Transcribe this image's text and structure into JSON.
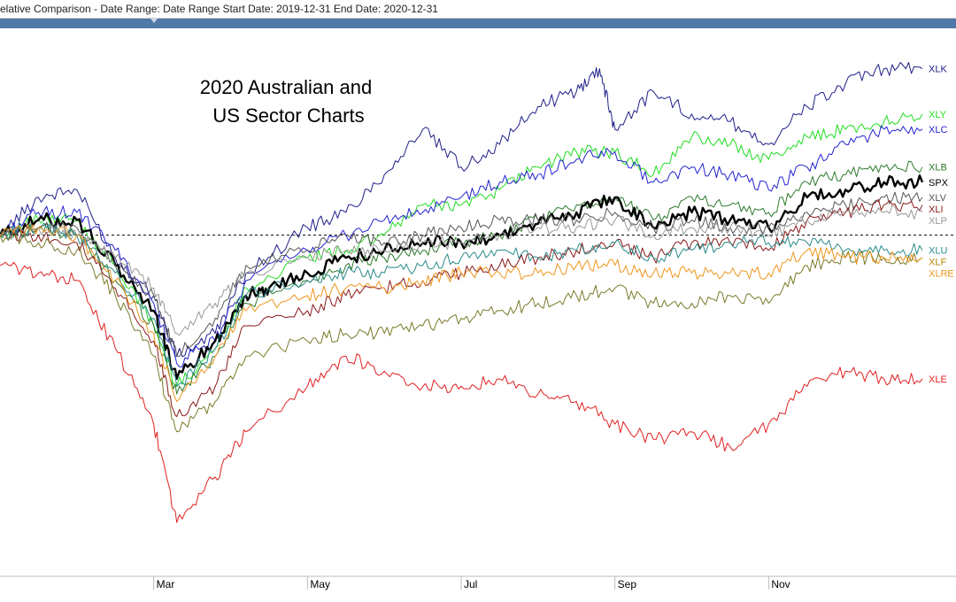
{
  "window": {
    "title": "elative Comparison - Date Range: Date Range  Start Date: 2019-12-31  End Date: 2020-12-31"
  },
  "chart_data": {
    "type": "line",
    "title": "2020 Australian and US Sector Charts",
    "title_lines": [
      "2020 Australian and",
      "US Sector Charts"
    ],
    "x_ticks": [
      "Mar",
      "May",
      "Jul",
      "Sep",
      "Nov"
    ],
    "x_tick_pos": [
      2,
      4,
      6,
      8,
      10
    ],
    "xlim": [
      0.0,
      12.0
    ],
    "ylim": [
      -45,
      25
    ],
    "ylabel": "",
    "xlabel": "",
    "baseline": 0,
    "grid": false,
    "legend": "labels at line ends (right)",
    "series": [
      {
        "name": "XLK",
        "color": "#1f1f8a",
        "label_color": "#1f1f8a",
        "width": 1,
        "points": [
          [
            0,
            0
          ],
          [
            0.5,
            5
          ],
          [
            1.0,
            6
          ],
          [
            1.5,
            -3
          ],
          [
            2.0,
            -8
          ],
          [
            2.3,
            -16
          ],
          [
            2.8,
            -13
          ],
          [
            3.2,
            -5
          ],
          [
            4.0,
            1
          ],
          [
            4.5,
            3
          ],
          [
            5.0,
            8
          ],
          [
            5.5,
            14
          ],
          [
            6.0,
            9
          ],
          [
            6.5,
            12
          ],
          [
            7.0,
            17
          ],
          [
            7.5,
            19
          ],
          [
            7.8,
            22
          ],
          [
            8.0,
            14
          ],
          [
            8.5,
            19
          ],
          [
            9.0,
            16
          ],
          [
            9.5,
            15
          ],
          [
            10.0,
            12
          ],
          [
            10.5,
            17
          ],
          [
            11.0,
            20
          ],
          [
            11.5,
            22
          ],
          [
            12.0,
            22
          ]
        ]
      },
      {
        "name": "XLY",
        "color": "#22dd22",
        "label_color": "#22dd22",
        "width": 1,
        "points": [
          [
            0,
            0
          ],
          [
            0.5,
            2
          ],
          [
            1.0,
            2
          ],
          [
            1.5,
            -4
          ],
          [
            2.0,
            -12
          ],
          [
            2.3,
            -20
          ],
          [
            2.8,
            -15
          ],
          [
            3.2,
            -7
          ],
          [
            4.0,
            -3
          ],
          [
            4.5,
            -2
          ],
          [
            5.0,
            0
          ],
          [
            5.5,
            4
          ],
          [
            6.0,
            4
          ],
          [
            6.5,
            6
          ],
          [
            7.0,
            9
          ],
          [
            7.5,
            11
          ],
          [
            8.0,
            11
          ],
          [
            8.5,
            8
          ],
          [
            9.0,
            13
          ],
          [
            9.5,
            12
          ],
          [
            10.0,
            10
          ],
          [
            10.5,
            13
          ],
          [
            11.0,
            14
          ],
          [
            11.5,
            15
          ],
          [
            12.0,
            16
          ]
        ]
      },
      {
        "name": "XLC",
        "color": "#2323d0",
        "label_color": "#2323d0",
        "width": 1,
        "points": [
          [
            0,
            0
          ],
          [
            0.5,
            3
          ],
          [
            1.0,
            3
          ],
          [
            1.5,
            -2
          ],
          [
            2.0,
            -9
          ],
          [
            2.3,
            -17
          ],
          [
            2.8,
            -14
          ],
          [
            3.2,
            -6
          ],
          [
            4.0,
            -2
          ],
          [
            4.5,
            0
          ],
          [
            5.0,
            2
          ],
          [
            5.5,
            3
          ],
          [
            6.0,
            5
          ],
          [
            6.5,
            7
          ],
          [
            7.0,
            8
          ],
          [
            7.5,
            10
          ],
          [
            8.0,
            11
          ],
          [
            8.5,
            7
          ],
          [
            9.0,
            9
          ],
          [
            9.5,
            8
          ],
          [
            10.0,
            6
          ],
          [
            10.5,
            9
          ],
          [
            11.0,
            12
          ],
          [
            11.5,
            14
          ],
          [
            12.0,
            14
          ]
        ]
      },
      {
        "name": "XLB",
        "color": "#2d7a2d",
        "label_color": "#2d7a2d",
        "width": 1,
        "points": [
          [
            0,
            0
          ],
          [
            0.5,
            1
          ],
          [
            1.0,
            0
          ],
          [
            1.5,
            -6
          ],
          [
            2.0,
            -12
          ],
          [
            2.3,
            -21
          ],
          [
            2.8,
            -16
          ],
          [
            3.2,
            -9
          ],
          [
            4.0,
            -6
          ],
          [
            4.5,
            -4
          ],
          [
            5.0,
            -3
          ],
          [
            5.5,
            -2
          ],
          [
            6.0,
            -1
          ],
          [
            6.5,
            0
          ],
          [
            7.0,
            2
          ],
          [
            7.5,
            4
          ],
          [
            8.0,
            5
          ],
          [
            8.5,
            2
          ],
          [
            9.0,
            5
          ],
          [
            9.5,
            4
          ],
          [
            10.0,
            3
          ],
          [
            10.5,
            7
          ],
          [
            11.0,
            8
          ],
          [
            11.5,
            9
          ],
          [
            12.0,
            9
          ]
        ]
      },
      {
        "name": "SPX",
        "color": "#000000",
        "label_color": "#000000",
        "width": 2.4,
        "points": [
          [
            0,
            0
          ],
          [
            0.5,
            2
          ],
          [
            1.0,
            2
          ],
          [
            1.5,
            -4
          ],
          [
            2.0,
            -10
          ],
          [
            2.3,
            -19
          ],
          [
            2.8,
            -14
          ],
          [
            3.2,
            -8
          ],
          [
            3.5,
            -7
          ],
          [
            4.0,
            -5
          ],
          [
            4.5,
            -3
          ],
          [
            5.0,
            -2
          ],
          [
            5.5,
            -1
          ],
          [
            6.0,
            -1
          ],
          [
            6.5,
            0
          ],
          [
            7.0,
            1.5
          ],
          [
            7.5,
            3
          ],
          [
            8.0,
            5
          ],
          [
            8.5,
            1
          ],
          [
            9.0,
            3
          ],
          [
            9.5,
            2
          ],
          [
            10.0,
            1
          ],
          [
            10.5,
            5
          ],
          [
            11.0,
            6
          ],
          [
            11.5,
            7
          ],
          [
            12.0,
            7
          ]
        ]
      },
      {
        "name": "XLV",
        "color": "#555555",
        "label_color": "#555555",
        "width": 1,
        "points": [
          [
            0,
            0
          ],
          [
            0.5,
            1
          ],
          [
            1.0,
            1
          ],
          [
            1.5,
            -4
          ],
          [
            2.0,
            -8
          ],
          [
            2.3,
            -16
          ],
          [
            2.8,
            -11
          ],
          [
            3.2,
            -4
          ],
          [
            4.0,
            -2
          ],
          [
            4.5,
            0
          ],
          [
            5.0,
            -1
          ],
          [
            5.5,
            0
          ],
          [
            6.0,
            1
          ],
          [
            6.5,
            2
          ],
          [
            7.0,
            2
          ],
          [
            7.5,
            2
          ],
          [
            8.0,
            3
          ],
          [
            8.5,
            1
          ],
          [
            9.0,
            2
          ],
          [
            9.5,
            1
          ],
          [
            10.0,
            1
          ],
          [
            10.5,
            3
          ],
          [
            11.0,
            4
          ],
          [
            11.5,
            5
          ],
          [
            12.0,
            5
          ]
        ]
      },
      {
        "name": "XLI",
        "color": "#8b1a1a",
        "label_color": "#8b1a1a",
        "width": 1,
        "points": [
          [
            0,
            0
          ],
          [
            0.5,
            0
          ],
          [
            1.0,
            -1
          ],
          [
            1.5,
            -7
          ],
          [
            2.0,
            -14
          ],
          [
            2.3,
            -24
          ],
          [
            2.8,
            -20
          ],
          [
            3.2,
            -12
          ],
          [
            4.0,
            -10
          ],
          [
            4.5,
            -8
          ],
          [
            5.0,
            -7
          ],
          [
            5.5,
            -6
          ],
          [
            6.0,
            -5
          ],
          [
            6.5,
            -4
          ],
          [
            7.0,
            -3
          ],
          [
            7.5,
            -2
          ],
          [
            8.0,
            -1
          ],
          [
            8.5,
            -3
          ],
          [
            9.0,
            -1
          ],
          [
            9.5,
            -1
          ],
          [
            10.0,
            -2
          ],
          [
            10.5,
            2
          ],
          [
            11.0,
            3
          ],
          [
            11.5,
            4
          ],
          [
            12.0,
            4
          ]
        ]
      },
      {
        "name": "XLP",
        "color": "#999999",
        "label_color": "#999999",
        "width": 1,
        "points": [
          [
            0,
            0
          ],
          [
            0.5,
            1
          ],
          [
            1.0,
            0
          ],
          [
            1.5,
            -3
          ],
          [
            2.0,
            -7
          ],
          [
            2.3,
            -13
          ],
          [
            2.8,
            -9
          ],
          [
            3.2,
            -5
          ],
          [
            4.0,
            -3
          ],
          [
            4.5,
            -2
          ],
          [
            5.0,
            -2
          ],
          [
            5.5,
            -1
          ],
          [
            6.0,
            -1
          ],
          [
            6.5,
            0
          ],
          [
            7.0,
            1
          ],
          [
            7.5,
            1
          ],
          [
            8.0,
            2
          ],
          [
            8.5,
            0
          ],
          [
            9.0,
            1
          ],
          [
            9.5,
            1
          ],
          [
            10.0,
            0
          ],
          [
            10.5,
            2
          ],
          [
            11.0,
            3
          ],
          [
            11.5,
            3
          ],
          [
            12.0,
            3
          ]
        ]
      },
      {
        "name": "XLU",
        "color": "#2a8a8a",
        "label_color": "#2a8a8a",
        "width": 1,
        "points": [
          [
            0,
            0
          ],
          [
            0.5,
            1
          ],
          [
            1.0,
            0
          ],
          [
            1.5,
            -5
          ],
          [
            2.0,
            -11
          ],
          [
            2.3,
            -20
          ],
          [
            2.8,
            -15
          ],
          [
            3.2,
            -8
          ],
          [
            4.0,
            -6
          ],
          [
            4.5,
            -5
          ],
          [
            5.0,
            -5
          ],
          [
            5.5,
            -4
          ],
          [
            6.0,
            -3
          ],
          [
            6.5,
            -2
          ],
          [
            7.0,
            -3
          ],
          [
            7.5,
            -2
          ],
          [
            8.0,
            -1
          ],
          [
            8.5,
            -3
          ],
          [
            9.0,
            -2
          ],
          [
            9.5,
            -1
          ],
          [
            10.0,
            -1
          ],
          [
            10.5,
            -1
          ],
          [
            11.0,
            -2
          ],
          [
            11.5,
            -2
          ],
          [
            12.0,
            -2
          ]
        ]
      },
      {
        "name": "XLF",
        "color": "#7a7a2a",
        "label_color": "#b8860b",
        "width": 1,
        "points": [
          [
            0,
            0
          ],
          [
            0.5,
            -1
          ],
          [
            1.0,
            -2
          ],
          [
            1.5,
            -8
          ],
          [
            2.0,
            -16
          ],
          [
            2.3,
            -26
          ],
          [
            2.8,
            -22
          ],
          [
            3.2,
            -16
          ],
          [
            4.0,
            -14
          ],
          [
            4.5,
            -13
          ],
          [
            5.0,
            -13
          ],
          [
            5.5,
            -12
          ],
          [
            6.0,
            -11
          ],
          [
            6.5,
            -10
          ],
          [
            7.0,
            -9
          ],
          [
            7.5,
            -8
          ],
          [
            8.0,
            -7
          ],
          [
            8.5,
            -9
          ],
          [
            9.0,
            -9
          ],
          [
            9.5,
            -8
          ],
          [
            10.0,
            -9
          ],
          [
            10.5,
            -4
          ],
          [
            11.0,
            -3
          ],
          [
            11.5,
            -3
          ],
          [
            12.0,
            -3
          ]
        ]
      },
      {
        "name": "XLRE",
        "color": "#f0961e",
        "label_color": "#f0961e",
        "width": 1,
        "points": [
          [
            0,
            0
          ],
          [
            0.5,
            1
          ],
          [
            1.0,
            0
          ],
          [
            1.5,
            -6
          ],
          [
            2.0,
            -13
          ],
          [
            2.3,
            -22
          ],
          [
            2.8,
            -16
          ],
          [
            3.2,
            -10
          ],
          [
            4.0,
            -8
          ],
          [
            4.5,
            -7
          ],
          [
            5.0,
            -7
          ],
          [
            5.5,
            -6
          ],
          [
            6.0,
            -5
          ],
          [
            6.5,
            -5
          ],
          [
            7.0,
            -5
          ],
          [
            7.5,
            -4
          ],
          [
            8.0,
            -4
          ],
          [
            8.5,
            -5
          ],
          [
            9.0,
            -5
          ],
          [
            9.5,
            -5
          ],
          [
            10.0,
            -5
          ],
          [
            10.5,
            -2
          ],
          [
            11.0,
            -3
          ],
          [
            11.5,
            -3
          ],
          [
            12.0,
            -3
          ]
        ]
      },
      {
        "name": "XLE",
        "color": "#e02020",
        "label_color": "#e02020",
        "width": 1,
        "points": [
          [
            0,
            -4
          ],
          [
            0.5,
            -5
          ],
          [
            1.0,
            -6
          ],
          [
            1.5,
            -15
          ],
          [
            2.0,
            -25
          ],
          [
            2.3,
            -38
          ],
          [
            2.8,
            -32
          ],
          [
            3.2,
            -26
          ],
          [
            4.0,
            -20
          ],
          [
            4.5,
            -16
          ],
          [
            5.0,
            -18
          ],
          [
            5.5,
            -20
          ],
          [
            6.0,
            -20
          ],
          [
            6.5,
            -19
          ],
          [
            7.0,
            -21
          ],
          [
            7.5,
            -22
          ],
          [
            8.0,
            -25
          ],
          [
            8.5,
            -27
          ],
          [
            9.0,
            -26
          ],
          [
            9.5,
            -28
          ],
          [
            10.0,
            -25
          ],
          [
            10.5,
            -20
          ],
          [
            11.0,
            -18
          ],
          [
            11.5,
            -19
          ],
          [
            12.0,
            -19
          ]
        ]
      }
    ]
  }
}
